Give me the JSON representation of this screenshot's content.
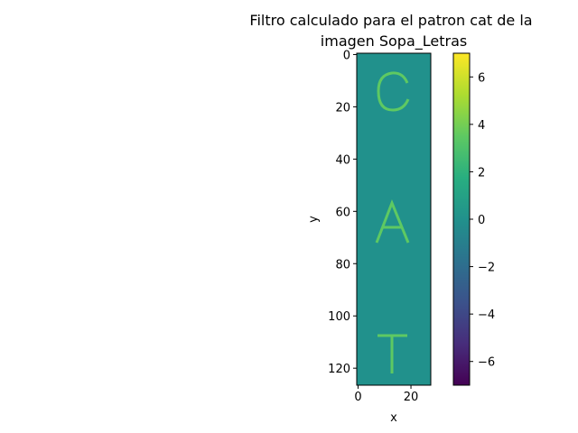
{
  "chart_data": {
    "type": "heatmap",
    "title_lines": [
      "Filtro calculado para el patron cat de la",
      "imagen Sopa_Letras"
    ],
    "xlabel": "x",
    "ylabel": "y",
    "xlim": [
      -0.5,
      27.5
    ],
    "ylim": [
      126.5,
      -0.5
    ],
    "grid": false,
    "x_ticks": [
      0,
      20
    ],
    "y_ticks": [
      0,
      20,
      40,
      60,
      80,
      100,
      120
    ],
    "background_value": 0.6,
    "letters": [
      "C",
      "A",
      "T"
    ],
    "letter_value": 3.5,
    "colormap": "viridis",
    "colorbar": {
      "vmin": -7,
      "vmax": 7,
      "ticks": [
        6,
        4,
        2,
        0,
        -2,
        -4,
        -6
      ],
      "tick_labels": [
        "6",
        "4",
        "2",
        "0",
        "−2",
        "−4",
        "−6"
      ]
    }
  }
}
